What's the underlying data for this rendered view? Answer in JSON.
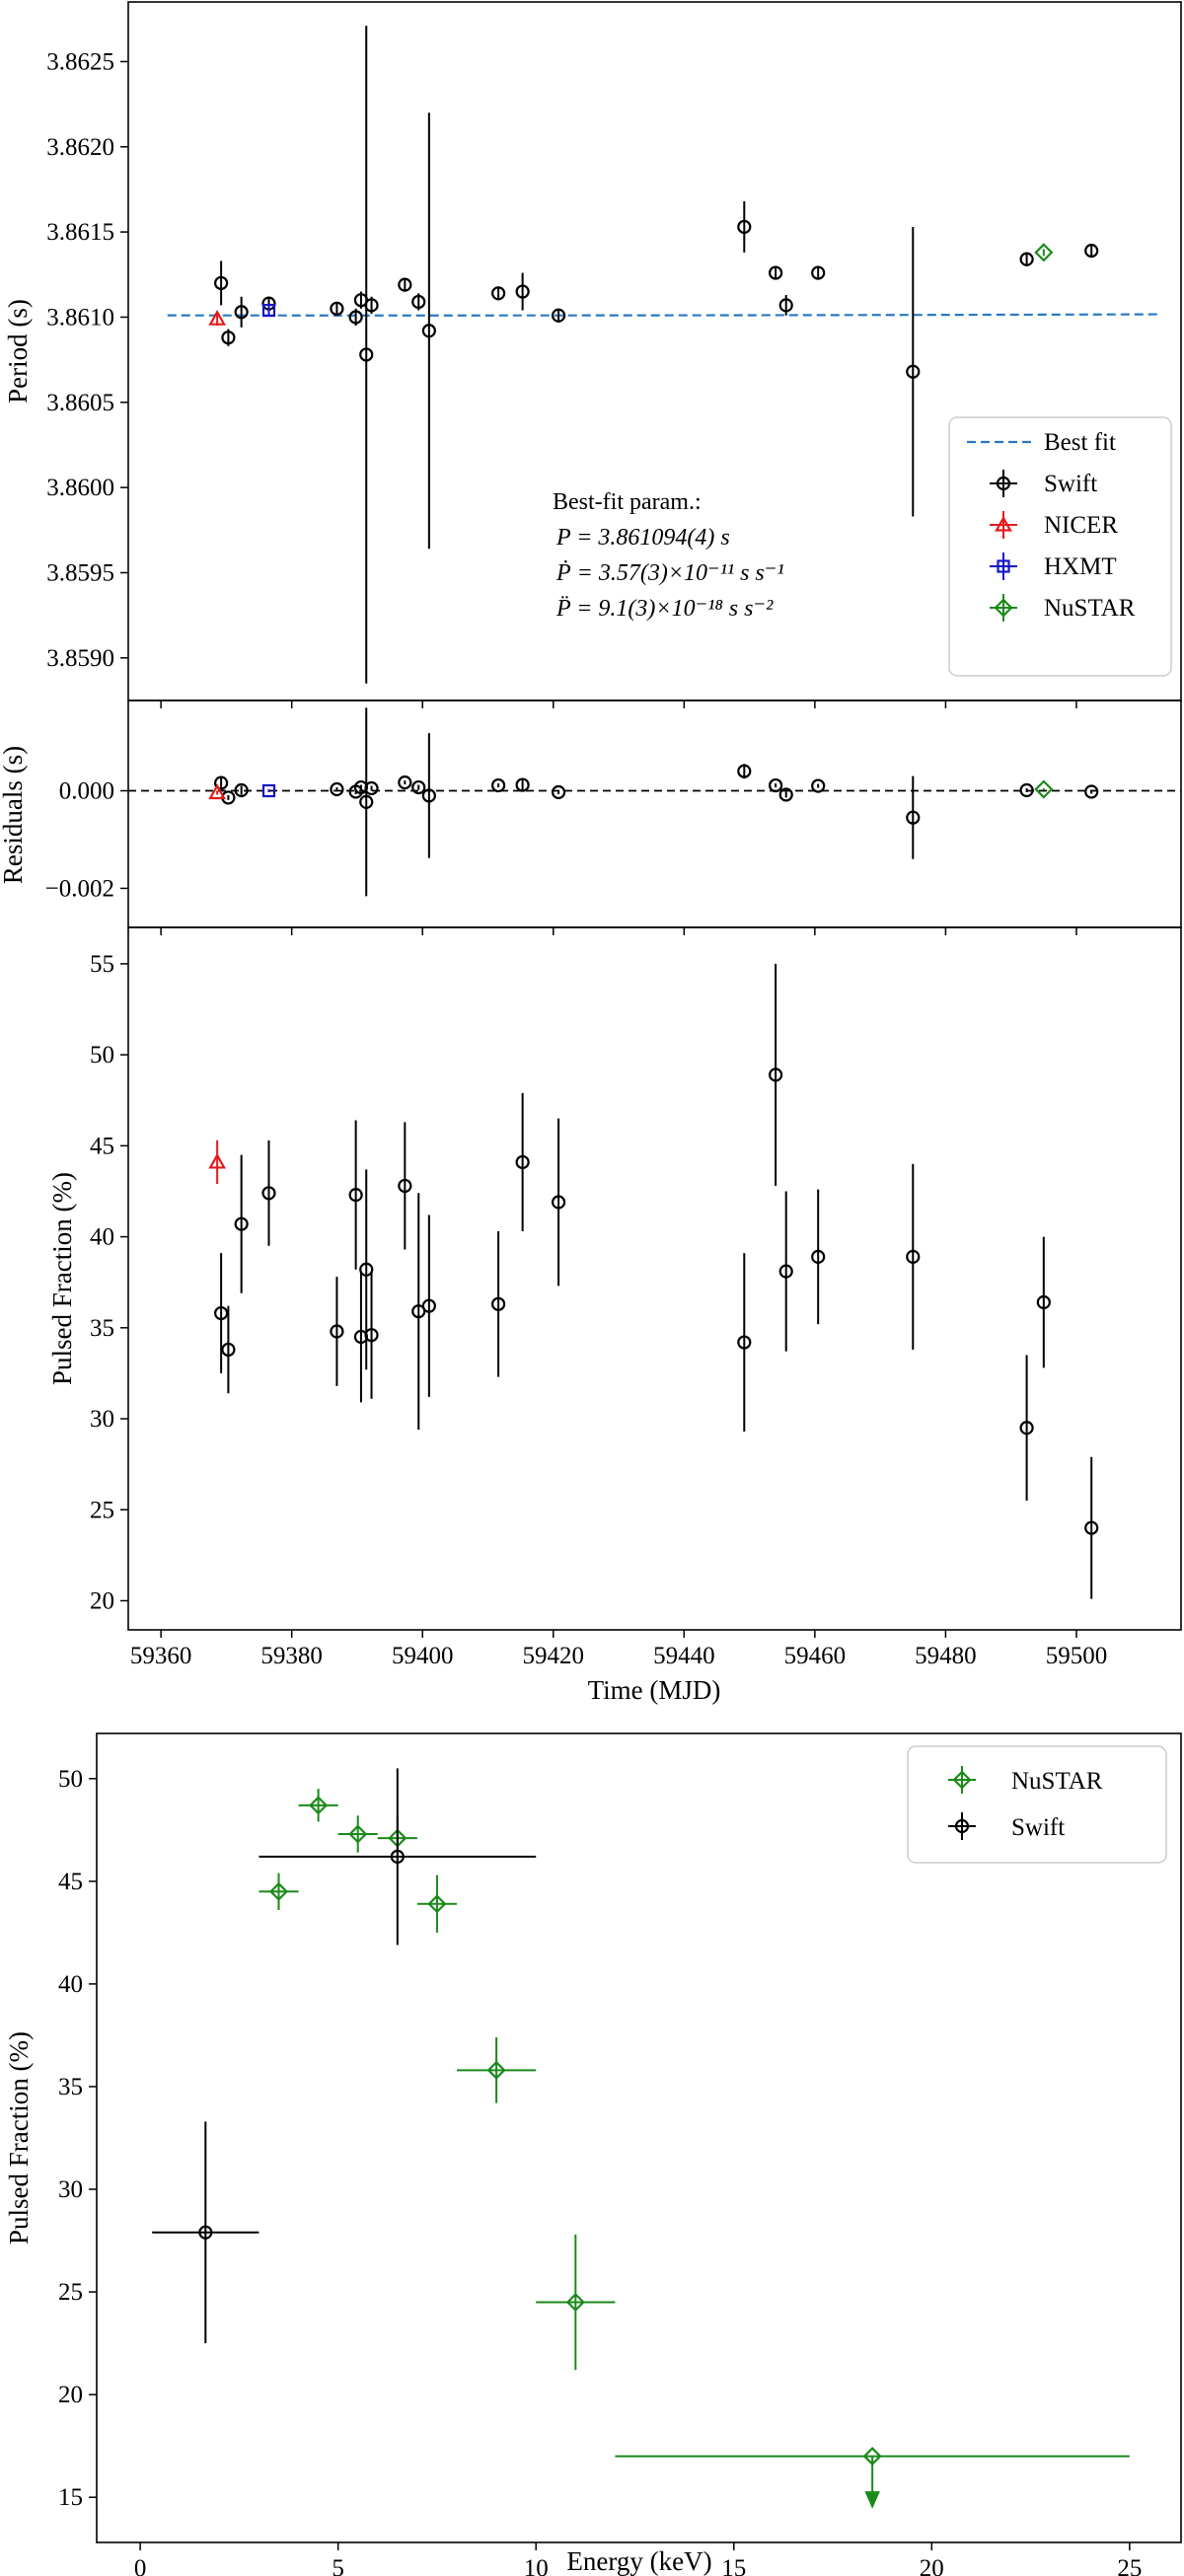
{
  "colors": {
    "swift": "#000000",
    "nicer": "#e41a1c",
    "hxmt": "#1515c8",
    "nustar": "#1a8a1a",
    "bestfit": "#2b78c2"
  },
  "chart_data": [
    {
      "id": "period",
      "type": "scatter",
      "ylabel": "Period (s)",
      "xlim": [
        59355,
        59516
      ],
      "ylim": [
        3.85875,
        3.86285
      ],
      "yticks": [
        3.859,
        3.8595,
        3.86,
        3.8605,
        3.861,
        3.8615,
        3.862,
        3.8625
      ],
      "ytick_labels": [
        "3.8590",
        "3.8595",
        "3.8600",
        "3.8605",
        "3.8610",
        "3.8615",
        "3.8620",
        "3.8625"
      ],
      "legend": [
        {
          "label": "Best fit",
          "kind": "line",
          "color": "bestfit"
        },
        {
          "label": "Swift",
          "kind": "circle",
          "color": "swift"
        },
        {
          "label": "NICER",
          "kind": "triangle",
          "color": "nicer"
        },
        {
          "label": "HXMT",
          "kind": "square",
          "color": "hxmt"
        },
        {
          "label": "NuSTAR",
          "kind": "diamond",
          "color": "nustar"
        }
      ],
      "annotation": {
        "title": "Best-fit param.:",
        "lines": [
          "P = 3.861094(4) s",
          "Ṗ = 3.57(3)×10⁻¹¹ s s⁻¹",
          "P̈ = 9.1(3)×10⁻¹⁸ s s⁻²"
        ]
      },
      "best_fit": {
        "t0": 59395,
        "p0": 3.86101,
        "a": 4.9e-10,
        "x_start": 59361,
        "x_end": 59513
      },
      "series": [
        {
          "name": "Swift",
          "marker": "circle",
          "color": "swift",
          "points": [
            {
              "x": 59369.2,
              "y": 3.8612,
              "yerr": 0.00013
            },
            {
              "x": 59370.3,
              "y": 3.86088,
              "yerr": 5e-05
            },
            {
              "x": 59372.3,
              "y": 3.86103,
              "yerr": 9e-05
            },
            {
              "x": 59376.5,
              "y": 3.86108,
              "yerr": 4e-05
            },
            {
              "x": 59386.9,
              "y": 3.86105,
              "yerr": 4e-05
            },
            {
              "x": 59389.8,
              "y": 3.861,
              "yerr": 5e-05
            },
            {
              "x": 59390.6,
              "y": 3.8611,
              "yerr": 5e-05
            },
            {
              "x": 59391.4,
              "y": 3.86078,
              "yerr": 0.00193
            },
            {
              "x": 59392.2,
              "y": 3.86107,
              "yerr": 5e-05
            },
            {
              "x": 59397.3,
              "y": 3.86119,
              "yerr": 4e-05
            },
            {
              "x": 59399.4,
              "y": 3.86109,
              "yerr": 5e-05
            },
            {
              "x": 59401.0,
              "y": 3.86092,
              "yerr": 0.00128
            },
            {
              "x": 59411.6,
              "y": 3.86114,
              "yerr": 4e-05
            },
            {
              "x": 59415.3,
              "y": 3.86115,
              "yerr": 0.00011
            },
            {
              "x": 59420.8,
              "y": 3.86101,
              "yerr": 4e-05
            },
            {
              "x": 59449.2,
              "y": 3.86153,
              "yerr": 0.00015
            },
            {
              "x": 59454.0,
              "y": 3.86126,
              "yerr": 4e-05
            },
            {
              "x": 59455.6,
              "y": 3.86107,
              "yerr": 6e-05
            },
            {
              "x": 59460.5,
              "y": 3.86126,
              "yerr": 4e-05
            },
            {
              "x": 59475.0,
              "y": 3.86068,
              "yerr": 0.00085
            },
            {
              "x": 59492.4,
              "y": 3.86134,
              "yerr": 4e-05
            },
            {
              "x": 59502.3,
              "y": 3.86139,
              "yerr": 4e-05
            }
          ]
        },
        {
          "name": "NICER",
          "marker": "triangle",
          "color": "nicer",
          "points": [
            {
              "x": 59368.6,
              "y": 3.86099,
              "yerr": 4e-05
            }
          ]
        },
        {
          "name": "HXMT",
          "marker": "square",
          "color": "hxmt",
          "points": [
            {
              "x": 59376.5,
              "y": 3.86104,
              "yerr": 3e-05
            }
          ]
        },
        {
          "name": "NuSTAR",
          "marker": "diamond",
          "color": "nustar",
          "points": [
            {
              "x": 59495.0,
              "y": 3.86138,
              "yerr": 2e-05
            }
          ]
        }
      ]
    },
    {
      "id": "residuals",
      "type": "scatter",
      "ylabel": "Residuals (s)",
      "xlim": [
        59355,
        59516
      ],
      "ylim": [
        -0.0028,
        0.00185
      ],
      "yticks": [
        -0.002,
        0.0
      ],
      "ytick_labels": [
        "−0.002",
        "0.000"
      ],
      "zero_line": true,
      "series": [
        {
          "name": "Swift",
          "marker": "circle",
          "color": "swift",
          "points": [
            {
              "x": 59369.2,
              "y": 0.00016,
              "yerr": 0.00013
            },
            {
              "x": 59370.3,
              "y": -0.00014,
              "yerr": 5e-05
            },
            {
              "x": 59372.3,
              "y": 1e-05,
              "yerr": 9e-05
            },
            {
              "x": 59386.9,
              "y": 3e-05,
              "yerr": 4e-05
            },
            {
              "x": 59389.8,
              "y": -2e-05,
              "yerr": 5e-05
            },
            {
              "x": 59390.6,
              "y": 7e-05,
              "yerr": 5e-05
            },
            {
              "x": 59391.4,
              "y": -0.00023,
              "yerr": 0.00193
            },
            {
              "x": 59392.2,
              "y": 5e-05,
              "yerr": 5e-05
            },
            {
              "x": 59397.3,
              "y": 0.00017,
              "yerr": 4e-05
            },
            {
              "x": 59399.4,
              "y": 7e-05,
              "yerr": 5e-05
            },
            {
              "x": 59401.0,
              "y": -0.0001,
              "yerr": 0.00128
            },
            {
              "x": 59411.6,
              "y": 0.00011,
              "yerr": 4e-05
            },
            {
              "x": 59415.3,
              "y": 0.00012,
              "yerr": 0.00011
            },
            {
              "x": 59420.8,
              "y": -3e-05,
              "yerr": 4e-05
            },
            {
              "x": 59449.2,
              "y": 0.0004,
              "yerr": 0.00015
            },
            {
              "x": 59454.0,
              "y": 0.00011,
              "yerr": 4e-05
            },
            {
              "x": 59455.6,
              "y": -8e-05,
              "yerr": 6e-05
            },
            {
              "x": 59460.5,
              "y": 0.0001,
              "yerr": 4e-05
            },
            {
              "x": 59475.0,
              "y": -0.00055,
              "yerr": 0.00085
            },
            {
              "x": 59492.4,
              "y": 1e-05,
              "yerr": 4e-05
            },
            {
              "x": 59502.3,
              "y": -2e-05,
              "yerr": 4e-05
            }
          ]
        },
        {
          "name": "NICER",
          "marker": "triangle",
          "color": "nicer",
          "points": [
            {
              "x": 59368.6,
              "y": -4e-05,
              "yerr": 4e-05
            }
          ]
        },
        {
          "name": "HXMT",
          "marker": "square",
          "color": "hxmt",
          "points": [
            {
              "x": 59376.5,
              "y": 0.0,
              "yerr": 3e-05
            }
          ]
        },
        {
          "name": "NuSTAR",
          "marker": "diamond",
          "color": "nustar",
          "points": [
            {
              "x": 59495.0,
              "y": 3e-05,
              "yerr": 2e-05
            }
          ]
        }
      ]
    },
    {
      "id": "pulsed-fraction-time",
      "type": "scatter",
      "ylabel": "Pulsed Fraction (%)",
      "xlabel": "Time (MJD)",
      "xlim": [
        59355,
        59516
      ],
      "ylim": [
        18.4,
        57.0
      ],
      "xticks": [
        59360,
        59380,
        59400,
        59420,
        59440,
        59460,
        59480,
        59500
      ],
      "xtick_labels": [
        "59360",
        "59380",
        "59400",
        "59420",
        "59440",
        "59460",
        "59480",
        "59500"
      ],
      "yticks": [
        20,
        25,
        30,
        35,
        40,
        45,
        50,
        55
      ],
      "ytick_labels": [
        "20",
        "25",
        "30",
        "35",
        "40",
        "45",
        "50",
        "55"
      ],
      "series": [
        {
          "name": "Swift",
          "marker": "circle",
          "color": "swift",
          "points": [
            {
              "x": 59369.2,
              "y": 35.8,
              "yerr": 3.3
            },
            {
              "x": 59370.3,
              "y": 33.8,
              "yerr": 2.4
            },
            {
              "x": 59372.3,
              "y": 40.7,
              "yerr": 3.8
            },
            {
              "x": 59376.5,
              "y": 42.4,
              "yerr": 2.9
            },
            {
              "x": 59386.9,
              "y": 34.8,
              "yerr": 3.0
            },
            {
              "x": 59389.8,
              "y": 42.3,
              "yerr": 4.1
            },
            {
              "x": 59390.6,
              "y": 34.5,
              "yerr": 3.6
            },
            {
              "x": 59391.4,
              "y": 38.2,
              "yerr": 5.5
            },
            {
              "x": 59392.2,
              "y": 34.6,
              "yerr": 3.5
            },
            {
              "x": 59397.3,
              "y": 42.8,
              "yerr": 3.5
            },
            {
              "x": 59399.4,
              "y": 35.9,
              "yerr": 6.5
            },
            {
              "x": 59401.0,
              "y": 36.2,
              "yerr": 5.0
            },
            {
              "x": 59411.6,
              "y": 36.3,
              "yerr": 4.0
            },
            {
              "x": 59415.3,
              "y": 44.1,
              "yerr": 3.8
            },
            {
              "x": 59420.8,
              "y": 41.9,
              "yerr": 4.6
            },
            {
              "x": 59449.2,
              "y": 34.2,
              "yerr": 4.9
            },
            {
              "x": 59454.0,
              "y": 48.9,
              "yerr": 6.1
            },
            {
              "x": 59455.6,
              "y": 38.1,
              "yerr": 4.4
            },
            {
              "x": 59460.5,
              "y": 38.9,
              "yerr": 3.7
            },
            {
              "x": 59475.0,
              "y": 38.9,
              "yerr": 5.1
            },
            {
              "x": 59492.4,
              "y": 29.5,
              "yerr": 4.0
            },
            {
              "x": 59495.0,
              "y": 36.4,
              "yerr": 3.6
            },
            {
              "x": 59502.3,
              "y": 24.0,
              "yerr": 3.9
            }
          ]
        },
        {
          "name": "NICER",
          "marker": "triangle",
          "color": "nicer",
          "points": [
            {
              "x": 59368.6,
              "y": 44.1,
              "yerr": 1.2
            }
          ]
        }
      ]
    },
    {
      "id": "pulsed-fraction-energy",
      "type": "scatter",
      "ylabel": "Pulsed Fraction (%)",
      "xlabel": "Energy (keV)",
      "xlim": [
        -1.1,
        26.3
      ],
      "ylim": [
        12.8,
        52.2
      ],
      "xticks": [
        0,
        5,
        10,
        15,
        20,
        25
      ],
      "xtick_labels": [
        "0",
        "5",
        "10",
        "15",
        "20",
        "25"
      ],
      "yticks": [
        15,
        20,
        25,
        30,
        35,
        40,
        45,
        50
      ],
      "ytick_labels": [
        "15",
        "20",
        "25",
        "30",
        "35",
        "40",
        "45",
        "50"
      ],
      "legend": [
        {
          "label": "NuSTAR",
          "kind": "diamond",
          "color": "nustar"
        },
        {
          "label": "Swift",
          "kind": "circle",
          "color": "swift"
        }
      ],
      "series": [
        {
          "name": "NuSTAR",
          "marker": "diamond",
          "color": "nustar",
          "points": [
            {
              "x": 3.5,
              "xerr": 0.5,
              "y": 44.5,
              "yerr": 0.9
            },
            {
              "x": 4.5,
              "xerr": 0.5,
              "y": 48.7,
              "yerr": 0.8
            },
            {
              "x": 5.5,
              "xerr": 0.5,
              "y": 47.3,
              "yerr": 0.9
            },
            {
              "x": 6.5,
              "xerr": 0.5,
              "y": 47.1,
              "yerr": 1.1
            },
            {
              "x": 7.5,
              "xerr": 0.5,
              "y": 43.9,
              "yerr": 1.4
            },
            {
              "x": 9.0,
              "xerr": 1.0,
              "y": 35.8,
              "yerr": 1.6
            },
            {
              "x": 11.0,
              "xerr": 1.0,
              "y": 24.5,
              "yerr": 3.3
            },
            {
              "x": 18.5,
              "xerr": 6.5,
              "y": 17.0,
              "upper_limit": true
            }
          ]
        },
        {
          "name": "Swift",
          "marker": "circle",
          "color": "swift",
          "points": [
            {
              "x": 1.65,
              "xerr": 1.35,
              "y": 27.9,
              "yerr": 5.4
            },
            {
              "x": 6.5,
              "xerr": 3.5,
              "y": 46.2,
              "yerr": 4.3
            }
          ]
        }
      ]
    }
  ]
}
